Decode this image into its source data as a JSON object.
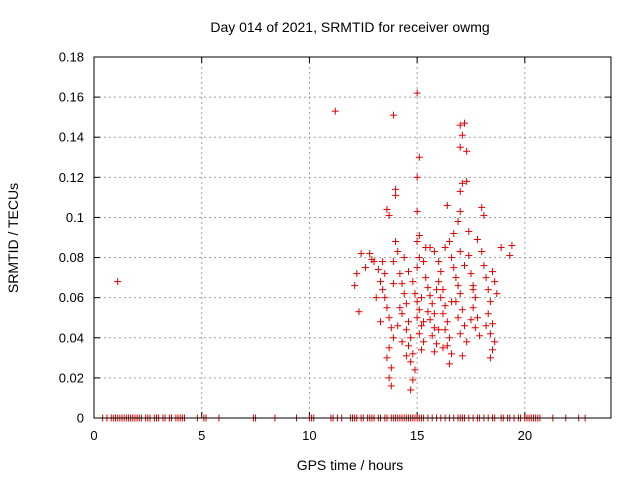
{
  "chart_data": {
    "type": "scatter",
    "title": "Day 014 of 2021, SRMTID for receiver owmg",
    "xlabel": "GPS time / hours",
    "ylabel": "SRMTID / TECUs",
    "xlim": [
      0,
      24
    ],
    "ylim": [
      0,
      0.18
    ],
    "x_ticks": [
      0,
      5,
      10,
      15,
      20
    ],
    "x_tick_labels": [
      "0",
      "5",
      "10",
      "15",
      "20"
    ],
    "y_ticks": [
      0,
      0.02,
      0.04,
      0.06,
      0.08,
      0.1,
      0.12,
      0.14,
      0.16,
      0.18
    ],
    "y_tick_labels": [
      "0",
      "0.02",
      "0.04",
      "0.06",
      "0.08",
      "0.1",
      "0.12",
      "0.14",
      "0.16",
      "0.18"
    ],
    "grid": true,
    "marker": "+",
    "series": [
      {
        "name": "SRMTID",
        "color": "#e00000",
        "points": [
          [
            1.1,
            0.068
          ],
          [
            11.2,
            0.153
          ],
          [
            13.9,
            0.151
          ],
          [
            15.0,
            0.162
          ],
          [
            17.0,
            0.146
          ],
          [
            17.2,
            0.147
          ],
          [
            17.1,
            0.141
          ],
          [
            17.3,
            0.133
          ],
          [
            17.0,
            0.135
          ],
          [
            15.1,
            0.13
          ],
          [
            15.0,
            0.12
          ],
          [
            17.1,
            0.117
          ],
          [
            17.3,
            0.118
          ],
          [
            17.0,
            0.113
          ],
          [
            14.0,
            0.114
          ],
          [
            14.0,
            0.111
          ],
          [
            13.6,
            0.104
          ],
          [
            13.7,
            0.101
          ],
          [
            16.4,
            0.106
          ],
          [
            18.0,
            0.105
          ],
          [
            17.0,
            0.103
          ],
          [
            18.1,
            0.101
          ],
          [
            16.9,
            0.098
          ],
          [
            15.0,
            0.103
          ],
          [
            12.4,
            0.082
          ],
          [
            12.2,
            0.072
          ],
          [
            12.1,
            0.066
          ],
          [
            12.3,
            0.053
          ],
          [
            12.8,
            0.082
          ],
          [
            12.9,
            0.079
          ],
          [
            13.0,
            0.078
          ],
          [
            13.2,
            0.074
          ],
          [
            13.3,
            0.068
          ],
          [
            13.4,
            0.064
          ],
          [
            13.5,
            0.06
          ],
          [
            13.6,
            0.055
          ],
          [
            13.7,
            0.05
          ],
          [
            13.8,
            0.045
          ],
          [
            13.9,
            0.04
          ],
          [
            13.7,
            0.035
          ],
          [
            13.6,
            0.03
          ],
          [
            13.8,
            0.025
          ],
          [
            13.7,
            0.02
          ],
          [
            13.8,
            0.016
          ],
          [
            14.0,
            0.088
          ],
          [
            14.1,
            0.083
          ],
          [
            13.9,
            0.078
          ],
          [
            14.2,
            0.072
          ],
          [
            14.3,
            0.067
          ],
          [
            14.4,
            0.062
          ],
          [
            14.5,
            0.057
          ],
          [
            14.3,
            0.052
          ],
          [
            14.6,
            0.048
          ],
          [
            14.5,
            0.044
          ],
          [
            14.7,
            0.04
          ],
          [
            14.6,
            0.036
          ],
          [
            14.8,
            0.032
          ],
          [
            14.7,
            0.028
          ],
          [
            14.9,
            0.024
          ],
          [
            14.8,
            0.019
          ],
          [
            14.7,
            0.014
          ],
          [
            14.9,
            0.062
          ],
          [
            15.0,
            0.058
          ],
          [
            15.1,
            0.054
          ],
          [
            15.0,
            0.05
          ],
          [
            15.2,
            0.046
          ],
          [
            15.1,
            0.042
          ],
          [
            15.3,
            0.038
          ],
          [
            15.2,
            0.034
          ],
          [
            15.0,
            0.075
          ],
          [
            15.1,
            0.08
          ],
          [
            15.0,
            0.088
          ],
          [
            15.1,
            0.091
          ],
          [
            15.3,
            0.078
          ],
          [
            15.4,
            0.07
          ],
          [
            15.5,
            0.065
          ],
          [
            15.6,
            0.061
          ],
          [
            15.7,
            0.057
          ],
          [
            15.5,
            0.053
          ],
          [
            15.6,
            0.049
          ],
          [
            15.8,
            0.045
          ],
          [
            15.7,
            0.041
          ],
          [
            15.9,
            0.037
          ],
          [
            15.8,
            0.033
          ],
          [
            15.6,
            0.085
          ],
          [
            15.8,
            0.083
          ],
          [
            16.0,
            0.078
          ],
          [
            16.1,
            0.073
          ],
          [
            16.0,
            0.068
          ],
          [
            16.2,
            0.064
          ],
          [
            16.1,
            0.06
          ],
          [
            16.3,
            0.056
          ],
          [
            16.2,
            0.052
          ],
          [
            16.4,
            0.048
          ],
          [
            16.3,
            0.044
          ],
          [
            16.5,
            0.04
          ],
          [
            16.4,
            0.036
          ],
          [
            16.6,
            0.032
          ],
          [
            16.5,
            0.027
          ],
          [
            16.3,
            0.085
          ],
          [
            16.6,
            0.08
          ],
          [
            16.7,
            0.075
          ],
          [
            16.8,
            0.07
          ],
          [
            16.9,
            0.066
          ],
          [
            17.0,
            0.062
          ],
          [
            16.8,
            0.058
          ],
          [
            17.1,
            0.054
          ],
          [
            16.9,
            0.05
          ],
          [
            17.2,
            0.046
          ],
          [
            17.0,
            0.042
          ],
          [
            17.3,
            0.038
          ],
          [
            17.1,
            0.031
          ],
          [
            17.2,
            0.076
          ],
          [
            17.4,
            0.081
          ],
          [
            17.5,
            0.072
          ],
          [
            17.6,
            0.066
          ],
          [
            17.7,
            0.06
          ],
          [
            17.6,
            0.055
          ],
          [
            17.8,
            0.05
          ],
          [
            17.7,
            0.045
          ],
          [
            17.9,
            0.041
          ],
          [
            18.0,
            0.083
          ],
          [
            18.1,
            0.076
          ],
          [
            18.2,
            0.07
          ],
          [
            18.3,
            0.064
          ],
          [
            18.4,
            0.058
          ],
          [
            18.3,
            0.052
          ],
          [
            18.5,
            0.047
          ],
          [
            18.4,
            0.042
          ],
          [
            18.6,
            0.038
          ],
          [
            18.5,
            0.034
          ],
          [
            18.4,
            0.03
          ],
          [
            18.5,
            0.073
          ],
          [
            18.6,
            0.068
          ],
          [
            18.9,
            0.085
          ],
          [
            19.4,
            0.086
          ],
          [
            19.3,
            0.081
          ],
          [
            12.6,
            0.075
          ],
          [
            13.1,
            0.06
          ],
          [
            13.3,
            0.048
          ],
          [
            14.4,
            0.08
          ],
          [
            14.6,
            0.073
          ],
          [
            14.2,
            0.055
          ],
          [
            14.8,
            0.068
          ],
          [
            15.4,
            0.085
          ],
          [
            15.9,
            0.064
          ],
          [
            16.7,
            0.092
          ],
          [
            17.4,
            0.093
          ],
          [
            17.8,
            0.089
          ],
          [
            16.5,
            0.088
          ],
          [
            13.5,
            0.072
          ],
          [
            14.1,
            0.046
          ],
          [
            14.3,
            0.038
          ],
          [
            15.2,
            0.06
          ],
          [
            15.8,
            0.052
          ],
          [
            16.6,
            0.058
          ],
          [
            17.5,
            0.049
          ],
          [
            18.2,
            0.046
          ],
          [
            18.7,
            0.062
          ],
          [
            13.9,
            0.067
          ],
          [
            14.5,
            0.031
          ],
          [
            16.0,
            0.044
          ],
          [
            17.0,
            0.083
          ],
          [
            15.3,
            0.048
          ],
          [
            16.2,
            0.035
          ],
          [
            13.4,
            0.078
          ],
          [
            17.6,
            0.064
          ]
        ],
        "zero_line_x": [
          0.4,
          0.6,
          0.8,
          0.9,
          1.0,
          1.1,
          1.2,
          1.3,
          1.4,
          1.5,
          1.6,
          1.7,
          1.8,
          1.9,
          2.0,
          2.1,
          2.2,
          2.4,
          2.5,
          2.6,
          2.8,
          2.9,
          3.0,
          3.2,
          3.3,
          3.5,
          3.6,
          3.8,
          3.9,
          4.0,
          4.1,
          4.2,
          4.8,
          5.1,
          5.2,
          5.8,
          7.4,
          7.5,
          8.4,
          9.4,
          10.0,
          10.1,
          10.2,
          11.0,
          11.1,
          11.3,
          11.5,
          11.9,
          12.0,
          12.1,
          12.2,
          12.4,
          12.5,
          12.7,
          12.8,
          12.9,
          13.0,
          13.2,
          13.3,
          13.5,
          13.6,
          13.8,
          13.9,
          14.0,
          14.1,
          14.2,
          14.3,
          14.4,
          14.5,
          14.6,
          14.7,
          14.8,
          14.9,
          15.0,
          15.1,
          15.2,
          15.3,
          15.5,
          15.7,
          15.9,
          16.1,
          16.3,
          16.5,
          16.7,
          16.9,
          17.0,
          17.1,
          17.2,
          17.4,
          17.6,
          17.8,
          17.9,
          18.1,
          18.3,
          18.5,
          18.6,
          18.9,
          19.0,
          19.2,
          19.3,
          19.5,
          19.7,
          19.8,
          20.0,
          20.1,
          20.2,
          20.3,
          20.4,
          20.5,
          20.6,
          20.7,
          21.3,
          21.9,
          22.5,
          22.8
        ]
      }
    ]
  }
}
